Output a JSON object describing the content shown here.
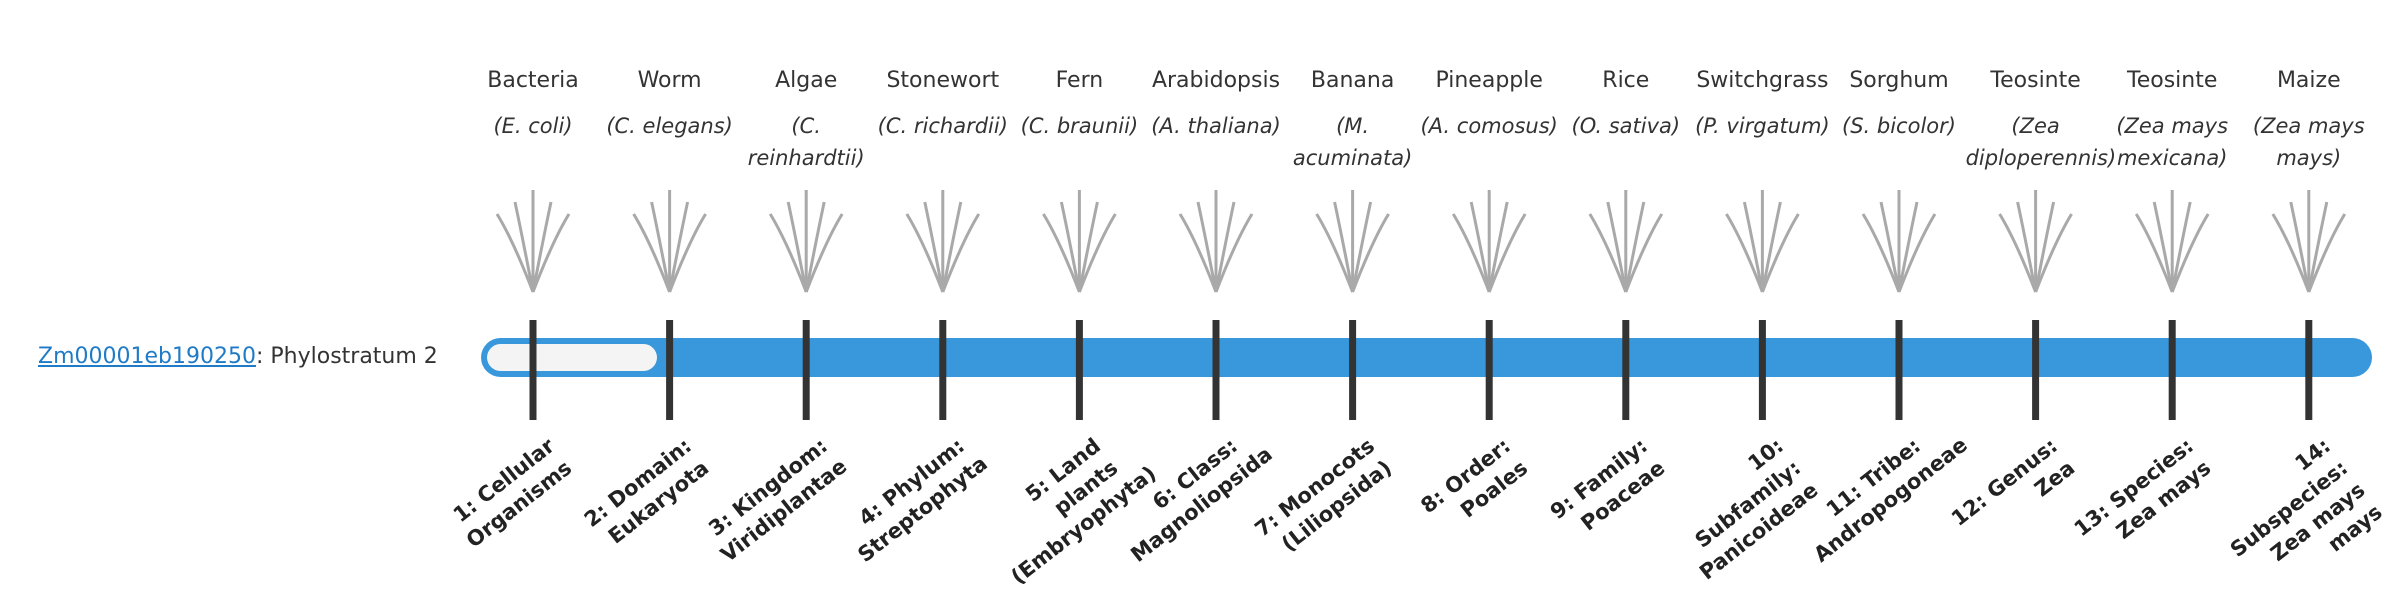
{
  "gene": {
    "id": "Zm00001eb190250",
    "label": ": Phylostratum 2"
  },
  "strata": [
    {
      "name": "Bacteria",
      "species": "(E. coli)",
      "rank": "1: Cellular Organisms"
    },
    {
      "name": "Worm",
      "species": "(C. elegans)",
      "rank": "2: Domain: Eukaryota"
    },
    {
      "name": "Algae",
      "species": "(C. reinhardtii)",
      "rank": "3: Kingdom: Viridiplantae"
    },
    {
      "name": "Stonewort",
      "species": "(C. richardii)",
      "rank": "4: Phylum: Streptophyta"
    },
    {
      "name": "Fern",
      "species": "(C. braunii)",
      "rank": "5: Land plants (Embryophyta)"
    },
    {
      "name": "Arabidopsis",
      "species": "(A. thaliana)",
      "rank": "6: Class: Magnoliopsida"
    },
    {
      "name": "Banana",
      "species": "(M. acuminata)",
      "rank": "7: Monocots (Liliopsida)"
    },
    {
      "name": "Pineapple",
      "species": "(A. comosus)",
      "rank": "8: Order: Poales"
    },
    {
      "name": "Rice",
      "species": "(O. sativa)",
      "rank": "9: Family: Poaceae"
    },
    {
      "name": "Switchgrass",
      "species": "(P. virgatum)",
      "rank": "10: Subfamily: Panicoideae"
    },
    {
      "name": "Sorghum",
      "species": "(S. bicolor)",
      "rank": "11: Tribe: Andropogoneae"
    },
    {
      "name": "Teosinte",
      "species": "(Zea diploperennis)",
      "rank": "12: Genus: Zea"
    },
    {
      "name": "Teosinte",
      "species": "(Zea mays mexicana)",
      "rank": "13: Species: Zea mays"
    },
    {
      "name": "Maize",
      "species": "(Zea mays mays)",
      "rank": "14: Subspecies: Zea mays mays"
    }
  ]
}
